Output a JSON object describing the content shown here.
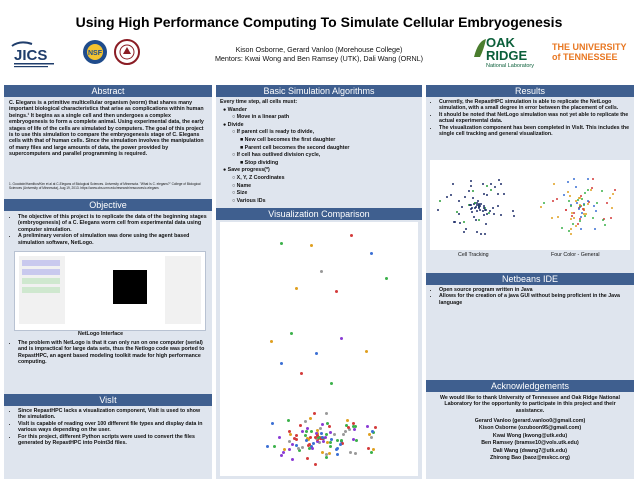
{
  "title": "Using High Performance Computing To Simulate Cellular Embryogenesis",
  "authors": "Kison Osborne, Gerard Vanloo (Morehouse College)",
  "mentors": "Mentors: Kwai Wong and Ben Ramsey (UTK), Dali Wang (ORNL)",
  "logos": {
    "jics": "JICS",
    "oak_ridge_1": "OAK",
    "oak_ridge_2": "RIDGE",
    "oak_ridge_3": "National Laboratory",
    "ut": "THE UNIVERSITY of TENNESSEE"
  },
  "abstract": {
    "header": "Abstract",
    "body": "C. Elegans is a primitive multicellular organism (worm) that shares many important biological characteristics that arise as complications within human beings.¹ It begins as a single cell and then undergoes a complex embryogenesis to form a complete animal. Using experimental data, the early stages of life of the cells are simulated by computers. The goal of this project is to use this simulation to compare the embryogenesis stage of C. Elegans cells with that of human cells. Since the simulation involves the manipulation of many files and large amounts of data, the power provided by supercomputers and parallel programming is required.",
    "footnote": "1. Goodwin/Hamilton/Kim et al at C-Elegans of Biological Sciences. University of Minnesota. \"What Is C. elegans?\" College of Biological Sciences (University of Minnesota), Aug 19, 2013. https://www.cbs.umn.edu/research/resources/c-elegans"
  },
  "objective": {
    "header": "Objective",
    "bullets": [
      "The objective of this project is to replicate the data of the beginning stages (embryogenesis) of a C. Elegans worm cell from experimental data using computer simulation.",
      "A preliminary version of simulation was done using the agent based simulation software, NetLogo."
    ],
    "caption": "NetLogo Interface",
    "bullets2": [
      "The problem with NetLogo is that it can only run on one computer (serial) and is impractical for large data sets, thus the Netlogo code was ported to RepastHPC, an agent based modeling toolkit made for high performance computing."
    ]
  },
  "visit": {
    "header": "VisIt",
    "bullets": [
      "Since RepastHPC lacks a visualization component, VisIt is used to show the simulation.",
      "VisIt is capable of reading over 100 different file types and display data in various ways depending on the user.",
      "For this project, different Python scripts were used to convert the files generated by RepastHPC into Point3d files."
    ]
  },
  "algorithms": {
    "header": "Basic Simulation Algorithms",
    "lines": [
      "Every time step, all cells must:",
      "● Wander",
      "○ Move in a linear path",
      "● Divide",
      "○ If parent cell is ready to divide,",
      "■ New cell becomes the first daughter",
      "■ Parent cell becomes the second daughter",
      "○ If cell has outlived division cycle,",
      "■ Stop dividing",
      "● Save progress(*)",
      "○ X, Y, Z Coordinates",
      "○ Name",
      "○ Size",
      "○ Various IDs"
    ]
  },
  "visualization": {
    "header": "Visualization Comparison"
  },
  "results": {
    "header": "Results",
    "bullets": [
      "Currently, the RepastHPC simulation is able to replicate the NetLogo simulation, with a small degree in error between the placement of cells.",
      "It should be noted that NetLogo simulation was not yet able to replicate the actual experimental data.",
      "The visualization component has been completed in VisIt. This includes the single cell tracking and general visualization."
    ],
    "caption_left": "Cell Tracking",
    "caption_right": "Four Color - General"
  },
  "netbeans": {
    "header": "Netbeans IDE",
    "bullets": [
      "Open source program written in Java",
      "Allows for the creation of a java GUI without being proficient in the Java language"
    ]
  },
  "acknowledgements": {
    "header": "Acknowledgements",
    "body": "We would like to thank University of Tennessee and Oak Ridge National Laboratory for the opportunity to participate in this project and their assistance.",
    "contacts": [
      "Gerard Vanloo (gerard.vanloo0@gmail.com)",
      "Kison Osborne (ozuboon95@gmail.com)",
      "Kwai Wong (kwong@utk.edu)",
      "Ben Ramsey (bramse10@vols.utk.edu)",
      "Dali Wang (dwang7@utk.edu)",
      "Zhirong Bao (baoz@mskcc.org)"
    ]
  },
  "colors": {
    "header_bg": "#3f5f8f",
    "panel_bg": "#dfe5ee",
    "ut_orange": "#e87722"
  }
}
